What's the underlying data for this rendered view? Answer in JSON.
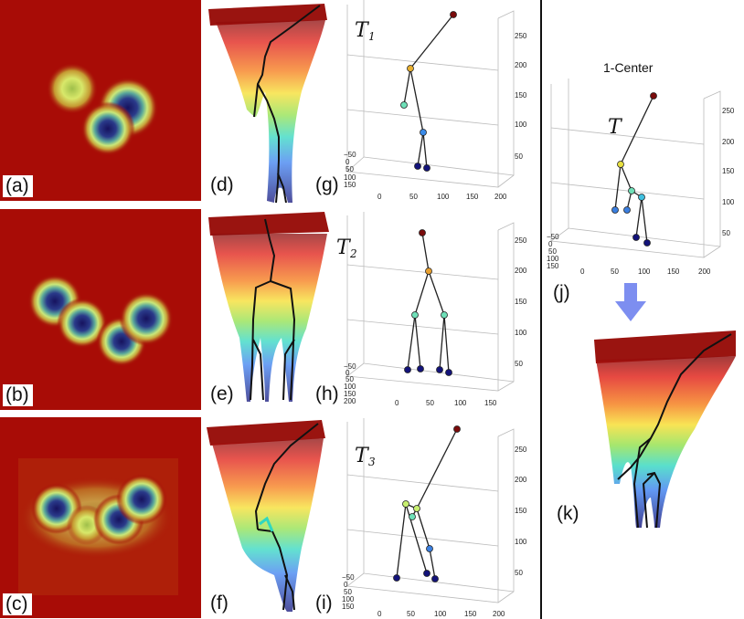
{
  "panel_labels": {
    "a": "(a)",
    "b": "(b)",
    "c": "(c)",
    "d": "(d)",
    "e": "(e)",
    "f": "(f)",
    "g": "(g)",
    "h": "(h)",
    "i": "(i)",
    "j": "(j)",
    "k": "(k)"
  },
  "tree_titles": {
    "t1": "T",
    "t1_sub": "1",
    "t2": "T",
    "t2_sub": "2",
    "t3": "T",
    "t3_sub": "3",
    "center": "T"
  },
  "center_label": "1-Center",
  "axes": {
    "z_ticks": [
      "250",
      "200",
      "150",
      "100",
      "50"
    ],
    "x_ticks_g": [
      "0",
      "50",
      "100",
      "150",
      "200"
    ],
    "y_ticks_g": [
      "−50",
      "0",
      "50",
      "100",
      "150"
    ],
    "x_ticks_h": [
      "0",
      "50",
      "100",
      "150"
    ],
    "y_ticks_h": [
      "−50",
      "0",
      "50",
      "100",
      "150",
      "200"
    ]
  },
  "colors": {
    "field_bg": "#a80c06",
    "blob_core": "#1a1a6e",
    "blob_ring": "#e6f07a",
    "arrow": "#7d8ef0"
  }
}
